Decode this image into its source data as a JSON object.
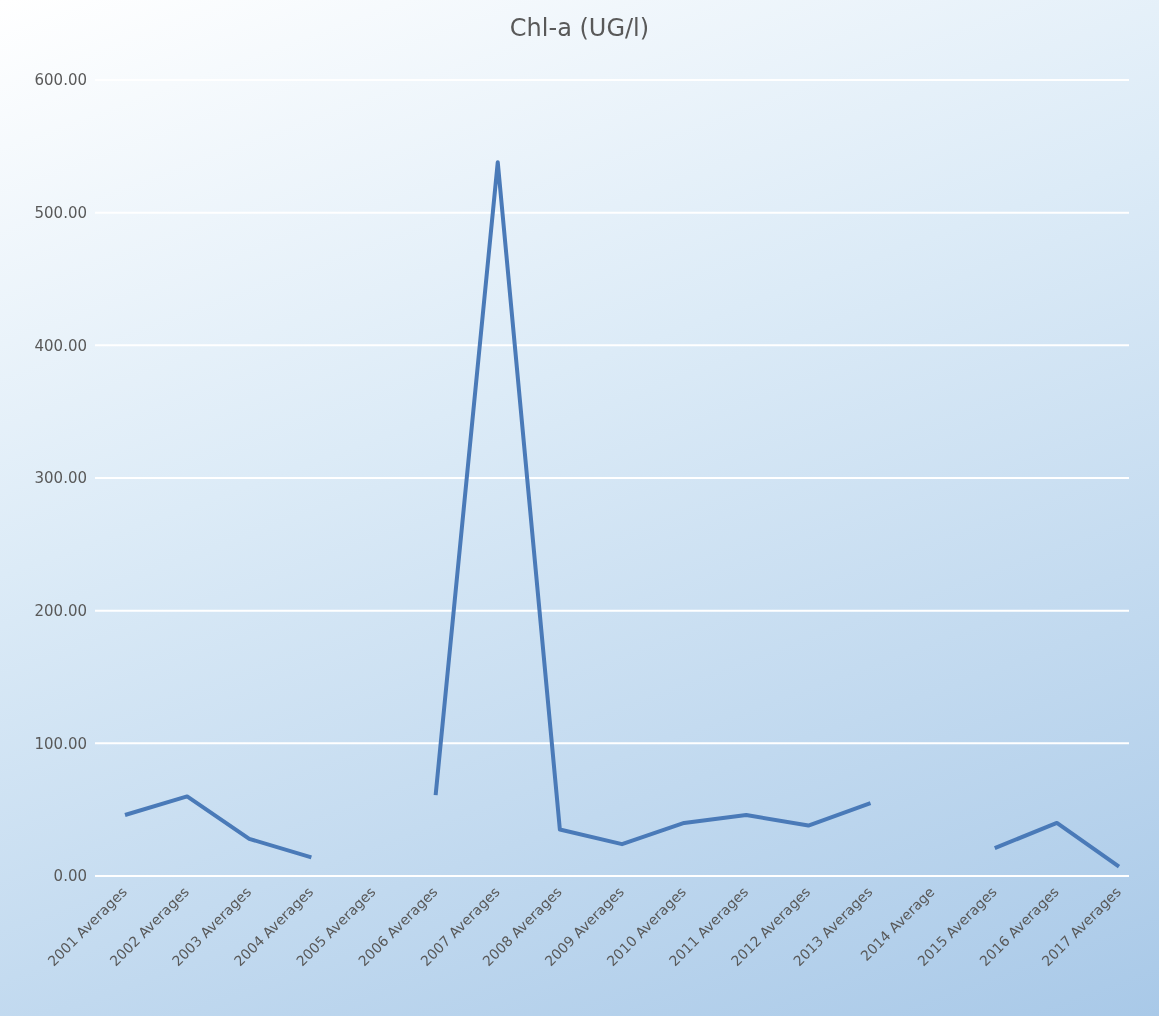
{
  "chart_data": {
    "type": "line",
    "title": "Chl-a (UG/l)",
    "categories": [
      "2001 Averages",
      "2002 Averages",
      "2003 Averages",
      "2004 Averages",
      "2005 Averages",
      "2006 Averages",
      "2007 Averages",
      "2008 Averages",
      "2009 Averages",
      "2010 Averages",
      "2011 Averages",
      "2012 Averages",
      "2013 Averages",
      "2014 Average",
      "2015 Averages",
      "2016 Averages",
      "2017 Averages"
    ],
    "series": [
      {
        "color": "#4a7ab8",
        "values": [
          46,
          60,
          28,
          14,
          null,
          61,
          538,
          35,
          24,
          40,
          46,
          38,
          55,
          null,
          21,
          40,
          7
        ]
      }
    ],
    "ylim": [
      0,
      600
    ],
    "yticks": [
      {
        "value": 0,
        "label": "0.00"
      },
      {
        "value": 100,
        "label": "100.00"
      },
      {
        "value": 200,
        "label": "200.00"
      },
      {
        "value": 300,
        "label": "300.00"
      },
      {
        "value": 400,
        "label": "400.00"
      },
      {
        "value": 500,
        "label": "500.00"
      },
      {
        "value": 600,
        "label": "600.00"
      }
    ],
    "grid": "y",
    "marker": "none",
    "line_style": "solid"
  }
}
